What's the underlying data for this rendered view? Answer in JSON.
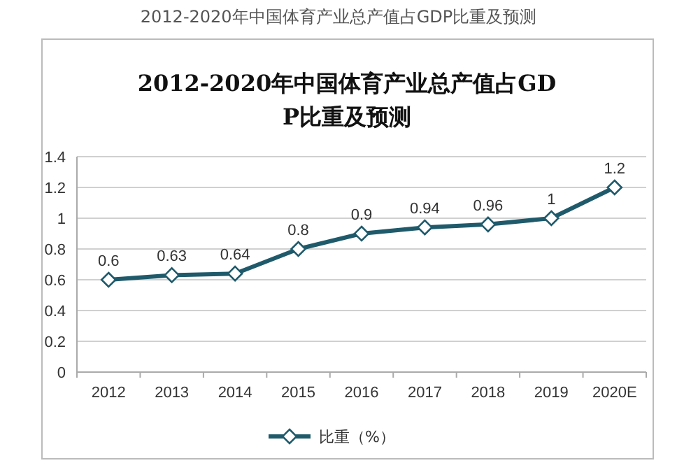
{
  "chart_data": {
    "type": "line",
    "title": "2012-2020年中国体育产业总产值占GDP比重及预测",
    "subtitle": "2012-2020年中国体育产业总产值占GDP比重及预测",
    "categories": [
      "2012",
      "2013",
      "2014",
      "2015",
      "2016",
      "2017",
      "2018",
      "2019",
      "2020E"
    ],
    "series": [
      {
        "name": "比重（%）",
        "color": "#1f5a6b",
        "values": [
          0.6,
          0.63,
          0.64,
          0.8,
          0.9,
          0.94,
          0.96,
          1,
          1.2
        ]
      }
    ],
    "ylim": [
      0,
      1.4
    ],
    "yticks": [
      0,
      0.2,
      0.4,
      0.6,
      0.8,
      1,
      1.2,
      1.4
    ],
    "grid": "y",
    "legend": "bottom",
    "marker": "diamond",
    "line_style": "solid",
    "data_labels": true
  }
}
